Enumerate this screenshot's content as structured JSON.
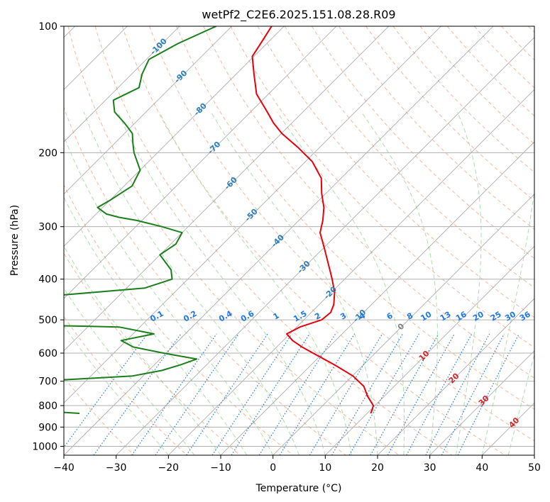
{
  "chart_data": {
    "type": "line",
    "title": "wetPf2_C2E6.2025.151.08.28.R09",
    "xlabel": "Temperature (°C)",
    "ylabel": "Pressure (hPa)",
    "xlim": [
      -40,
      50
    ],
    "ylim": [
      1050,
      100
    ],
    "y_scale": "log",
    "grid": true,
    "x_ticks": [
      "−40",
      "−30",
      "−20",
      "−10",
      "0",
      "10",
      "20",
      "30",
      "40",
      "50"
    ],
    "y_ticks": [
      "100",
      "200",
      "300",
      "400",
      "500",
      "600",
      "700",
      "800",
      "900",
      "1000"
    ],
    "y_tick_values": [
      100,
      200,
      300,
      400,
      500,
      600,
      700,
      800,
      900,
      1000
    ],
    "colors": {
      "temperature": "#e8000b",
      "dewpoint": "#1a7f1a",
      "dry_adiabat": "#f4a582",
      "moist_adiabat": "#a6d8a6",
      "mixing_ratio": "#1f77e4",
      "isotherm": "#808080",
      "isotherm_neg_label": "#2c7fb8",
      "isotherm_pos_label": "#d62728",
      "isotherm_zero_label": "#808080"
    },
    "isotherm_labels": [
      "-100",
      "-90",
      "-80",
      "-70",
      "-60",
      "-50",
      "-40",
      "-30",
      "-20",
      "-10",
      "0",
      "10",
      "20",
      "30",
      "40"
    ],
    "isotherm_values": [
      -100,
      -90,
      -80,
      -70,
      -60,
      -50,
      -40,
      -30,
      -20,
      -10,
      0,
      10,
      20,
      30,
      40
    ],
    "mixing_ratio_labels": [
      "0.1",
      "0.2",
      "0.4",
      "0.6",
      "1",
      "1.5",
      "2",
      "3",
      "4",
      "6",
      "8",
      "10",
      "13",
      "16",
      "20",
      "25",
      "30",
      "36"
    ],
    "mixing_ratio_values": [
      0.1,
      0.2,
      0.4,
      0.6,
      1,
      1.5,
      2,
      3,
      4,
      6,
      8,
      10,
      13,
      16,
      20,
      25,
      30,
      36
    ],
    "series": [
      {
        "key": "temperature",
        "p": [
          100,
          108,
          118,
          130,
          145,
          160,
          170,
          180,
          195,
          210,
          230,
          250,
          270,
          290,
          310,
          340,
          370,
          400,
          430,
          460,
          480,
          500,
          520,
          540,
          560,
          580,
          600,
          640,
          680,
          720,
          760,
          800,
          820,
          835
        ],
        "t": [
          -82.4,
          -81.4,
          -80.3,
          -76.6,
          -72.3,
          -66.8,
          -63.5,
          -59.9,
          -53.9,
          -48.7,
          -43.8,
          -40.8,
          -37.7,
          -35.4,
          -33.6,
          -29.5,
          -25.8,
          -22.4,
          -19.4,
          -17.2,
          -16.3,
          -16.6,
          -19.4,
          -20.6,
          -18.2,
          -15.2,
          -11.9,
          -5.5,
          0.1,
          4.2,
          6.8,
          9.7,
          10.3,
          10.7
        ]
      },
      {
        "key": "dewpoint",
        "p": [
          100,
          110,
          120,
          130,
          140,
          150,
          160,
          170,
          180,
          190,
          200,
          220,
          240,
          260,
          270,
          280,
          285,
          290,
          300,
          310,
          330,
          350,
          380,
          400,
          420,
          440,
          455,
          465,
          480,
          495,
          505,
          520,
          540,
          560,
          580,
          600,
          620,
          640,
          660,
          680,
          700,
          720,
          740,
          760,
          780,
          800,
          815,
          825,
          835
        ],
        "t": [
          -93.0,
          -97.0,
          -99.5,
          -98.0,
          -96.0,
          -98.5,
          -96.0,
          -92.0,
          -88.5,
          -86.5,
          -84.5,
          -80.0,
          -78.5,
          -80.0,
          -81.0,
          -78.0,
          -75.0,
          -71.0,
          -65.0,
          -60.0,
          -59.0,
          -60.0,
          -55.0,
          -53.0,
          -56.5,
          -74.0,
          -90.0,
          -69.0,
          -83.0,
          -101.0,
          -100.5,
          -54.0,
          -46.0,
          -51.0,
          -47.5,
          -40.5,
          -33.0,
          -35.0,
          -37.5,
          -42.0,
          -59.0,
          -58.5,
          -56.5,
          -63.0,
          -54.5,
          -54.5,
          -66.0,
          -52.5,
          -45.0
        ]
      }
    ]
  }
}
